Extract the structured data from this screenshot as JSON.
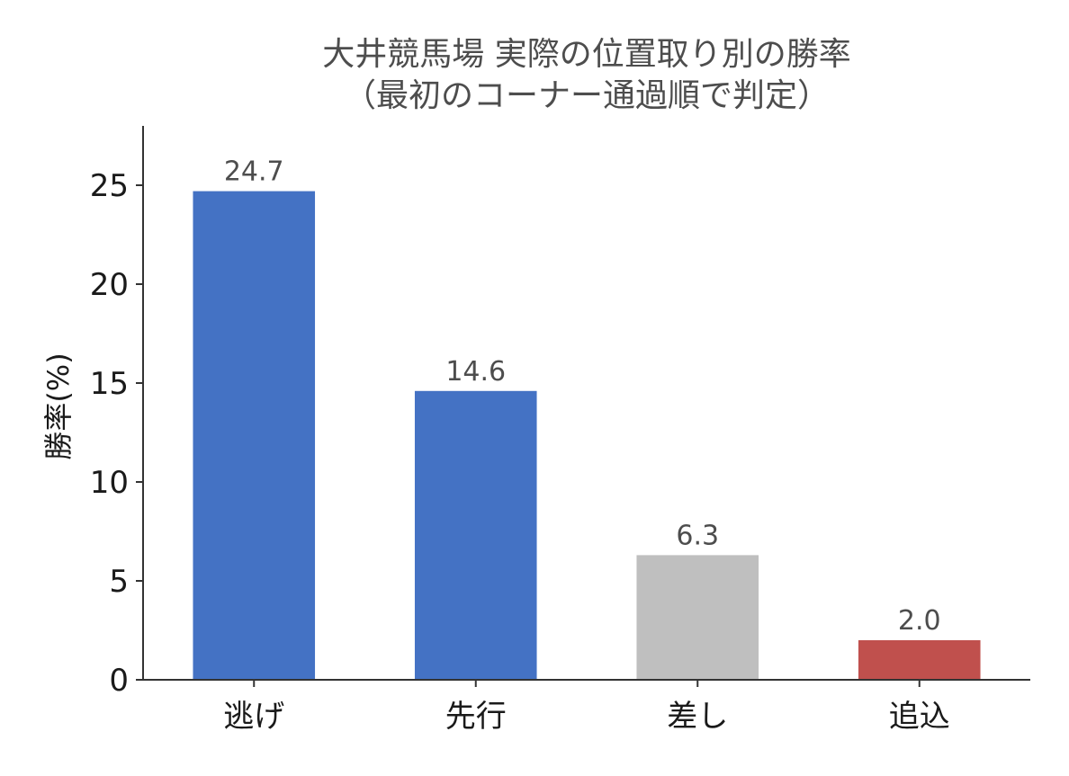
{
  "chart_data": {
    "type": "bar",
    "title_line1": "大井競馬場 実際の位置取り別の勝率",
    "title_line2": "（最初のコーナー通過順で判定）",
    "ylabel": "勝率(%)",
    "xlabel": "",
    "categories": [
      "逃げ",
      "先行",
      "差し",
      "追込"
    ],
    "values": [
      24.7,
      14.6,
      6.3,
      2.0
    ],
    "value_labels": [
      "24.7",
      "14.6",
      "6.3",
      "2.0"
    ],
    "bar_colors": [
      "#4472c4",
      "#4472c4",
      "#bfbfbf",
      "#c0504d"
    ],
    "ylim": [
      0,
      28
    ],
    "yticks": [
      0,
      5,
      10,
      15,
      20,
      25
    ],
    "grid": false,
    "legend": "none"
  }
}
